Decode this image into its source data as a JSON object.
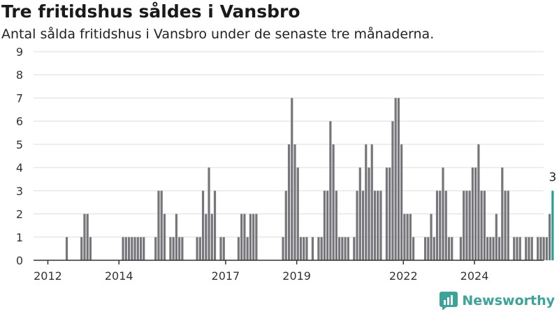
{
  "header": {
    "title": "Tre fritidshus såldes i Vansbro",
    "subtitle": "Antal sålda fritidshus i Vansbro under de senaste tre månaderna."
  },
  "brand": {
    "name": "Newsworthy",
    "color": "#3aa39a"
  },
  "colors": {
    "bar": "#76757a",
    "highlight": "#2a9d92",
    "grid": "#dddddd",
    "axis": "#333333"
  },
  "chart_data": {
    "type": "bar",
    "title": "",
    "xlabel": "",
    "ylabel": "",
    "ylim": [
      0,
      9
    ],
    "y_ticks": [
      0,
      1,
      2,
      3,
      4,
      5,
      6,
      7,
      8,
      9
    ],
    "x_tick_labels": [
      "2012",
      "2014",
      "2017",
      "2019",
      "2022",
      "2024"
    ],
    "grid": true,
    "legend": "none",
    "start_month": "2011-11",
    "highlight_label": "3",
    "values": [
      0,
      0,
      0,
      0,
      0,
      0,
      0,
      0,
      1,
      0,
      0,
      0,
      0,
      1,
      2,
      2,
      1,
      0,
      0,
      0,
      0,
      0,
      0,
      0,
      0,
      0,
      0,
      1,
      1,
      1,
      1,
      1,
      1,
      1,
      1,
      0,
      0,
      0,
      1,
      3,
      3,
      2,
      0,
      1,
      1,
      2,
      1,
      1,
      0,
      0,
      0,
      0,
      1,
      1,
      3,
      2,
      4,
      2,
      3,
      0,
      1,
      1,
      0,
      0,
      0,
      0,
      1,
      2,
      2,
      1,
      2,
      2,
      2,
      0,
      0,
      0,
      0,
      0,
      0,
      0,
      0,
      1,
      3,
      5,
      7,
      5,
      4,
      1,
      1,
      1,
      0,
      1,
      0,
      1,
      1,
      3,
      3,
      6,
      5,
      3,
      1,
      1,
      1,
      1,
      0,
      1,
      3,
      4,
      3,
      5,
      4,
      5,
      3,
      3,
      3,
      0,
      4,
      4,
      6,
      7,
      7,
      5,
      2,
      2,
      2,
      1,
      0,
      0,
      0,
      1,
      1,
      2,
      1,
      3,
      3,
      4,
      3,
      1,
      1,
      0,
      0,
      1,
      3,
      3,
      3,
      4,
      4,
      5,
      3,
      3,
      1,
      1,
      1,
      2,
      1,
      4,
      3,
      3,
      0,
      1,
      1,
      1,
      0,
      1,
      1,
      1,
      0,
      1,
      1,
      1,
      1,
      2,
      3
    ]
  }
}
